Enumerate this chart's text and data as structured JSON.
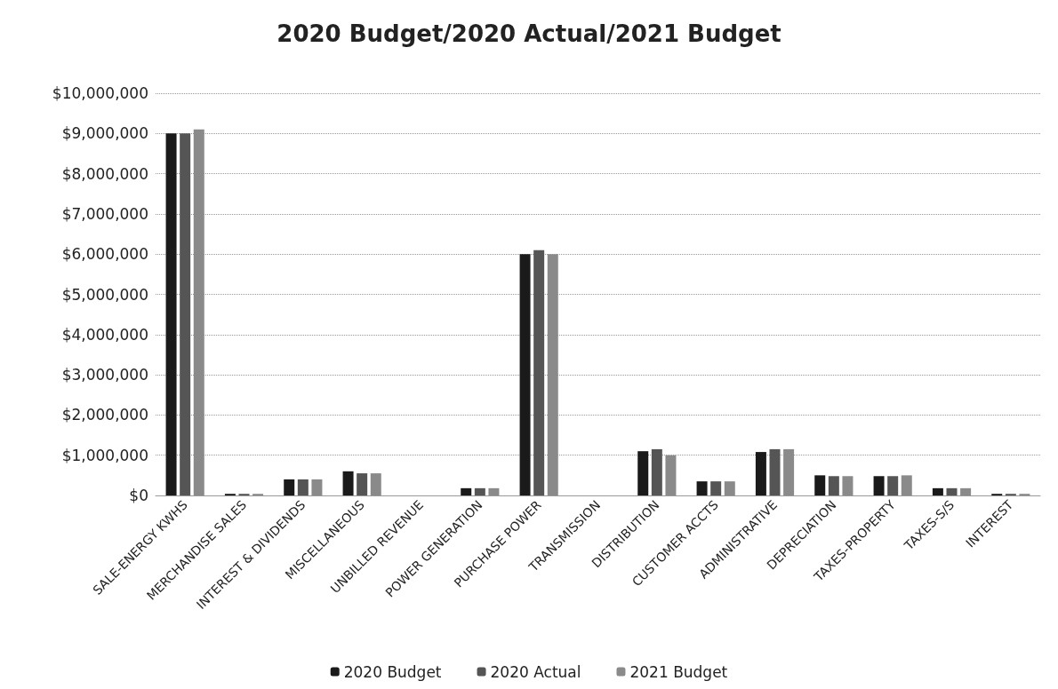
{
  "chart_data": {
    "type": "bar",
    "title": "2020 Budget/2020 Actual/2021 Budget",
    "categories": [
      "SALE-ENERGY KWHS",
      "MERCHANDISE SALES",
      "INTEREST & DIVIDENDS",
      "MISCELLANEOUS",
      "UNBILLED REVENUE",
      "POWER GENERATION",
      "PURCHASE POWER",
      "TRANSMISSION",
      "DISTRIBUTION",
      "CUSTOMER ACCTS",
      "ADMINISTRATIVE",
      "DEPRECIATION",
      "TAXES-PROPERTY",
      "TAXES-S/S",
      "INTEREST"
    ],
    "series": [
      {
        "name": "2020 Budget",
        "color": "#1a1a1a",
        "values": [
          9000000,
          40000,
          400000,
          600000,
          0,
          180000,
          6000000,
          0,
          1100000,
          350000,
          1080000,
          500000,
          480000,
          180000,
          40000
        ]
      },
      {
        "name": "2020 Actual",
        "color": "#555555",
        "values": [
          9000000,
          40000,
          400000,
          550000,
          0,
          180000,
          6100000,
          0,
          1150000,
          350000,
          1150000,
          480000,
          480000,
          180000,
          40000
        ]
      },
      {
        "name": "2021 Budget",
        "color": "#8a8a8a",
        "values": [
          9100000,
          40000,
          400000,
          550000,
          0,
          180000,
          6000000,
          0,
          1000000,
          350000,
          1150000,
          480000,
          500000,
          180000,
          40000
        ]
      }
    ],
    "ylim": [
      0,
      10000000
    ],
    "yticks": [
      {
        "value": 0,
        "label": "$0"
      },
      {
        "value": 1000000,
        "label": "$1,000,000"
      },
      {
        "value": 2000000,
        "label": "$2,000,000"
      },
      {
        "value": 3000000,
        "label": "$3,000,000"
      },
      {
        "value": 4000000,
        "label": "$4,000,000"
      },
      {
        "value": 5000000,
        "label": "$5,000,000"
      },
      {
        "value": 6000000,
        "label": "$6,000,000"
      },
      {
        "value": 7000000,
        "label": "$7,000,000"
      },
      {
        "value": 8000000,
        "label": "$8,000,000"
      },
      {
        "value": 9000000,
        "label": "$9,000,000"
      },
      {
        "value": 10000000,
        "label": "$10,000,000"
      }
    ],
    "grid": "y",
    "legend": "bottom"
  }
}
